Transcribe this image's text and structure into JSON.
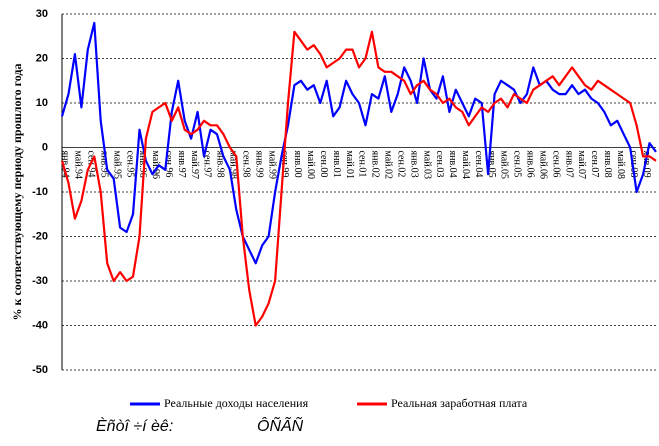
{
  "chart_data": {
    "type": "line",
    "y_label": "% к соответствующему периоду прошлого года",
    "categories": [
      "янв.94",
      null,
      "май.94",
      null,
      "сен.94",
      null,
      "янв.95",
      null,
      "май.95",
      null,
      "сен.95",
      null,
      "янв.96",
      null,
      "май.96",
      null,
      "сен.96",
      null,
      "янв.97",
      null,
      "май.97",
      null,
      "сен.97",
      null,
      "янв.98",
      null,
      "май.98",
      null,
      "сен.98",
      null,
      "янв.99",
      null,
      "май.99",
      null,
      "сен.99",
      null,
      "янв.00",
      null,
      "май.00",
      null,
      "сен.00",
      null,
      "янв.01",
      null,
      "май.01",
      null,
      "сен.01",
      null,
      "янв.02",
      null,
      "май.02",
      null,
      "сен.02",
      null,
      "янв.03",
      null,
      "май.03",
      null,
      "сен.03",
      null,
      "янв.04",
      null,
      "май.04",
      null,
      "сен.04",
      null,
      "янв.05",
      null,
      "май.05",
      null,
      "сен.05",
      null,
      "янв.06",
      null,
      "май.06",
      null,
      "сен.06",
      null,
      "янв.07",
      null,
      "май.07",
      null,
      "сен.07",
      null,
      "янв.08",
      null,
      "май.08",
      null,
      "сен.08",
      null,
      "янв.09",
      null,
      null
    ],
    "series": [
      {
        "name": "Реальные доходы населения",
        "color": "#0000ff",
        "values": [
          7,
          12,
          21,
          9,
          22,
          28,
          6,
          -5,
          -7,
          -18,
          -19,
          -15,
          4,
          -3,
          -6,
          -4,
          -5,
          8,
          15,
          6,
          2,
          8,
          -2,
          4,
          3,
          -2,
          -5,
          -14,
          -20,
          -23,
          -26,
          -22,
          -20,
          -10,
          -2,
          5,
          14,
          15,
          13,
          14,
          10,
          15,
          7,
          9,
          15,
          12,
          10,
          5,
          12,
          11,
          16,
          8,
          12,
          18,
          15,
          10,
          20,
          13,
          11,
          16,
          8,
          13,
          10,
          7,
          11,
          10,
          -6,
          12,
          15,
          14,
          13,
          10,
          12,
          18,
          14,
          15,
          13,
          12,
          12,
          14,
          12,
          13,
          11,
          10,
          8,
          5,
          6,
          3,
          0,
          -10,
          -6,
          1,
          -1
        ]
      },
      {
        "name": "Реальная заработная плата",
        "color": "#ff0000",
        "values": [
          -3,
          -8,
          -16,
          -12,
          -5,
          -2,
          -10,
          -26,
          -30,
          -28,
          -30,
          -29,
          -20,
          2,
          8,
          9,
          10,
          6,
          9,
          4,
          3,
          4,
          6,
          5,
          5,
          3,
          0,
          -2,
          -20,
          -32,
          -40,
          -38,
          -35,
          -30,
          -10,
          10,
          26,
          24,
          22,
          23,
          21,
          18,
          19,
          20,
          22,
          22,
          18,
          20,
          26,
          18,
          17,
          17,
          16,
          15,
          12,
          14,
          15,
          13,
          12,
          10,
          11,
          9,
          8,
          5,
          7,
          9,
          8,
          10,
          11,
          9,
          12,
          11,
          10,
          13,
          14,
          15,
          16,
          14,
          16,
          18,
          16,
          14,
          13,
          15,
          14,
          13,
          12,
          11,
          10,
          5,
          -2,
          -2,
          -3
        ]
      }
    ],
    "ylim": [
      -50,
      30
    ],
    "yticks": [
      -50,
      -40,
      -30,
      -20,
      -10,
      0,
      10,
      20,
      30
    ],
    "grid": true
  },
  "footer": {
    "source_label": "Èñòî ÷í èê:",
    "source_value": "ÔÑÃÑ"
  }
}
